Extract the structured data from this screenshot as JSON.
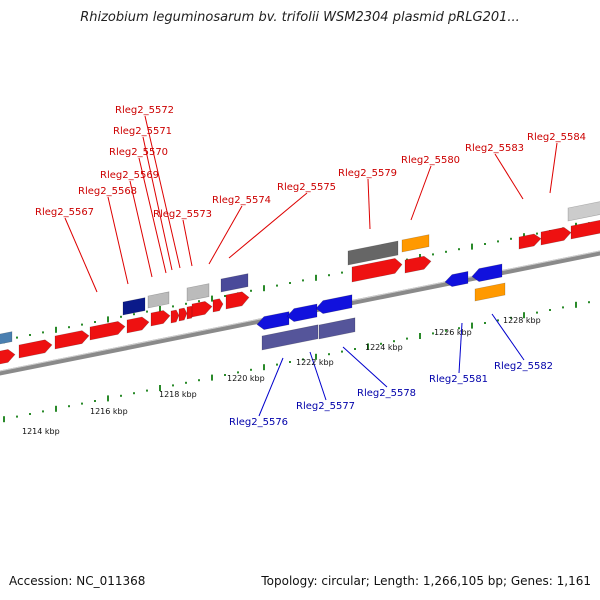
{
  "title": "Rhizobium leguminosarum bv. trifolii WSM2304 plasmid pRLG201...",
  "accession": "Accession: NC_011368",
  "summary": "Topology: circular; Length: 1,266,105 bp; Genes: 1,161",
  "colors": {
    "forward_gene": "#ee1111",
    "reverse_gene": "#1111dd",
    "forward_label": "#cc0000",
    "reverse_label": "#0000aa",
    "backbone": "#8a8a8a",
    "tick": "#2a8a2a"
  },
  "scale_labels": [
    "1214 kbp",
    "1216 kbp",
    "1218 kbp",
    "1220 kbp",
    "1222 kbp",
    "1224 kbp",
    "1226 kbp",
    "1228 kbp"
  ],
  "forward_labels": [
    "Rleg2_5567",
    "Rleg2_5568",
    "Rleg2_5569",
    "Rleg2_5570",
    "Rleg2_5571",
    "Rleg2_5572",
    "Rleg2_5573",
    "Rleg2_5574",
    "Rleg2_5575",
    "Rleg2_5579",
    "Rleg2_5580",
    "Rleg2_5583",
    "Rleg2_5584"
  ],
  "reverse_labels": [
    "Rleg2_5576",
    "Rleg2_5577",
    "Rleg2_5578",
    "Rleg2_5581",
    "Rleg2_5582"
  ]
}
